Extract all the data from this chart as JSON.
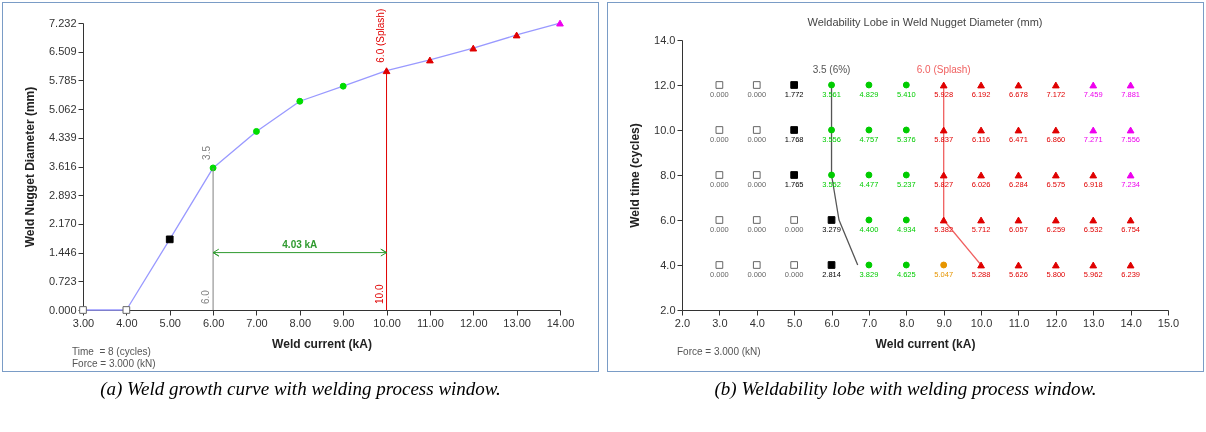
{
  "chart_data": [
    {
      "type": "line",
      "xlabel": "Weld current (kA)",
      "ylabel": "Weld Nugget Diameter (mm)",
      "xlim": [
        3,
        14
      ],
      "xticks": [
        {
          "value": 3,
          "label": "3.00"
        },
        {
          "value": 4,
          "label": "4.00"
        },
        {
          "value": 5,
          "label": "5.00"
        },
        {
          "value": 6,
          "label": "6.00"
        },
        {
          "value": 7,
          "label": "7.00"
        },
        {
          "value": 8,
          "label": "8.00"
        },
        {
          "value": 9,
          "label": "9.00"
        },
        {
          "value": 10,
          "label": "10.00"
        },
        {
          "value": 11,
          "label": "11.00"
        },
        {
          "value": 12,
          "label": "12.00"
        },
        {
          "value": 13,
          "label": "13.00"
        },
        {
          "value": 14,
          "label": "14.00"
        }
      ],
      "ylim": [
        0,
        7.232
      ],
      "yticks": [
        {
          "value": 0,
          "label": "0.000"
        },
        0.723,
        1.446,
        {
          "value": 2.17,
          "label": "2.170"
        },
        2.893,
        3.616,
        4.339,
        5.062,
        5.785,
        6.509,
        7.232
      ],
      "series": [
        {
          "color": "#9999ff",
          "marker": "none",
          "x": [
            3,
            4,
            5,
            6,
            7,
            8,
            9,
            10,
            11,
            12,
            13,
            14
          ],
          "values": [
            0,
            0,
            1.78,
            3.58,
            4.5,
            5.26,
            5.64,
            6.03,
            6.3,
            6.6,
            6.93,
            7.23
          ]
        },
        {
          "type": "scatter",
          "color": "#ffffff",
          "marker": "square",
          "x": [
            3,
            4
          ],
          "values": [
            0,
            0
          ]
        },
        {
          "type": "scatter",
          "color": "#000000",
          "marker": "square",
          "x": [
            5
          ],
          "values": [
            1.78
          ]
        },
        {
          "type": "scatter",
          "color": "#00dd00",
          "marker": "circle",
          "x": [
            6,
            7,
            8,
            9
          ],
          "values": [
            3.58,
            4.5,
            5.26,
            5.64
          ]
        },
        {
          "type": "scatter",
          "color": "#e00000",
          "marker": "triangle",
          "x": [
            10,
            11,
            12,
            13
          ],
          "values": [
            6.03,
            6.3,
            6.6,
            6.93
          ]
        },
        {
          "type": "scatter",
          "color": "#ee00ee",
          "marker": "triangle",
          "x": [
            14
          ],
          "values": [
            7.23
          ]
        }
      ],
      "ref_lines": [
        {
          "axis": "x",
          "value": 6,
          "label": "6.0",
          "color": "#808080"
        },
        {
          "axis": "x",
          "value": 10,
          "label": "10.0",
          "color": "#e00000"
        }
      ],
      "annotations": [
        {
          "text": "3.5",
          "x": 6,
          "y": 3.58
        },
        {
          "text": "6.0 (Splash)",
          "x": 10,
          "y": 6.03
        },
        "4.03 kA",
        "Time  = 8 (cycles)",
        "Force = 3.000 (kN)",
        "(a) Weld growth curve with welding process window."
      ]
    },
    {
      "type": "scatter",
      "title": "Weldability Lobe in Weld Nugget Diameter (mm)",
      "xlabel": "Weld current (kA)",
      "ylabel": "Weld time  (cycles)",
      "xlim": [
        2,
        15
      ],
      "xticks": [
        {
          "value": 2,
          "label": "2.0"
        },
        {
          "value": 3,
          "label": "3.0"
        },
        {
          "value": 4,
          "label": "4.0"
        },
        {
          "value": 5,
          "label": "5.0"
        },
        {
          "value": 6,
          "label": "6.0"
        },
        {
          "value": 7,
          "label": "7.0"
        },
        {
          "value": 8,
          "label": "8.0"
        },
        {
          "value": 9,
          "label": "9.0"
        },
        {
          "value": 10,
          "label": "10.0"
        },
        {
          "value": 11,
          "label": "11.0"
        },
        {
          "value": 12,
          "label": "12.0"
        },
        {
          "value": 13,
          "label": "13.0"
        },
        {
          "value": 14,
          "label": "14.0"
        },
        {
          "value": 15,
          "label": "15.0"
        }
      ],
      "ylim": [
        2,
        14
      ],
      "yticks": [
        {
          "value": 2,
          "label": "2.0"
        },
        {
          "value": 4,
          "label": "4.0"
        },
        {
          "value": 6,
          "label": "6.0"
        },
        {
          "value": 8,
          "label": "8.0"
        },
        {
          "value": 10,
          "label": "10.0"
        },
        {
          "value": 12,
          "label": "12.0"
        },
        {
          "value": 14,
          "label": "14.0"
        }
      ],
      "series": [
        {
          "type": "line",
          "name": "3.5 (6%)",
          "color": "#555555",
          "marker": "none",
          "x": [
            6,
            6,
            6.2,
            6.7
          ],
          "values": [
            12,
            8,
            6,
            4
          ]
        },
        {
          "type": "line",
          "name": "6.0 (Splash)",
          "color": "#f06060",
          "marker": "none",
          "x": [
            9,
            9,
            9,
            9,
            10
          ],
          "values": [
            12,
            10,
            8,
            6,
            4
          ]
        },
        {
          "color": "#ffffff",
          "marker": "square",
          "x": [
            3,
            4,
            3,
            4,
            3,
            4,
            3,
            4,
            5,
            3,
            4,
            5
          ],
          "values": [
            12,
            12,
            10,
            10,
            8,
            8,
            6,
            6,
            6,
            4,
            4,
            4
          ]
        },
        {
          "color": "#000000",
          "marker": "square",
          "x": [
            5,
            5,
            5,
            6,
            6
          ],
          "values": [
            12,
            10,
            8,
            6,
            4
          ]
        },
        {
          "color": "#00cc00",
          "marker": "circle",
          "x": [
            6,
            7,
            8,
            6,
            7,
            8,
            6,
            7,
            8,
            7,
            8,
            7,
            8
          ],
          "values": [
            12,
            12,
            12,
            10,
            10,
            10,
            8,
            8,
            8,
            6,
            6,
            4,
            4
          ]
        },
        {
          "color": "#e69500",
          "marker": "circle",
          "x": [
            9
          ],
          "values": [
            4
          ]
        },
        {
          "color": "#e00000",
          "marker": "triangle",
          "x": [
            9,
            10,
            11,
            12,
            9,
            10,
            11,
            12,
            9,
            10,
            11,
            12,
            13,
            9,
            10,
            11,
            12,
            13,
            14,
            10,
            11,
            12,
            13,
            14
          ],
          "values": [
            12,
            12,
            12,
            12,
            10,
            10,
            10,
            10,
            8,
            8,
            8,
            8,
            8,
            6,
            6,
            6,
            6,
            6,
            6,
            4,
            4,
            4,
            4,
            4
          ]
        },
        {
          "color": "#ee00ee",
          "marker": "triangle",
          "x": [
            13,
            14,
            13,
            14,
            14
          ],
          "values": [
            12,
            12,
            10,
            10,
            8
          ]
        }
      ],
      "annotations": [
        {
          "text": "0.000",
          "x": 3,
          "y": 12
        },
        {
          "text": "0.000",
          "x": 4,
          "y": 12
        },
        {
          "text": "1.772",
          "x": 5,
          "y": 12
        },
        {
          "text": "3.561",
          "x": 6,
          "y": 12
        },
        {
          "text": "4.829",
          "x": 7,
          "y": 12
        },
        {
          "text": "5.410",
          "x": 8,
          "y": 12
        },
        {
          "text": "5.928",
          "x": 9,
          "y": 12
        },
        {
          "text": "6.192",
          "x": 10,
          "y": 12
        },
        {
          "text": "6.678",
          "x": 11,
          "y": 12
        },
        {
          "text": "7.172",
          "x": 12,
          "y": 12
        },
        {
          "text": "7.459",
          "x": 13,
          "y": 12
        },
        {
          "text": "7.881",
          "x": 14,
          "y": 12
        },
        {
          "text": "0.000",
          "x": 3,
          "y": 10
        },
        {
          "text": "0.000",
          "x": 4,
          "y": 10
        },
        {
          "text": "1.768",
          "x": 5,
          "y": 10
        },
        {
          "text": "3.556",
          "x": 6,
          "y": 10
        },
        {
          "text": "4.757",
          "x": 7,
          "y": 10
        },
        {
          "text": "5.376",
          "x": 8,
          "y": 10
        },
        {
          "text": "5.837",
          "x": 9,
          "y": 10
        },
        {
          "text": "6.116",
          "x": 10,
          "y": 10
        },
        {
          "text": "6.471",
          "x": 11,
          "y": 10
        },
        {
          "text": "6.860",
          "x": 12,
          "y": 10
        },
        {
          "text": "7.271",
          "x": 13,
          "y": 10
        },
        {
          "text": "7.556",
          "x": 14,
          "y": 10
        },
        {
          "text": "0.000",
          "x": 3,
          "y": 8
        },
        {
          "text": "0.000",
          "x": 4,
          "y": 8
        },
        {
          "text": "1.765",
          "x": 5,
          "y": 8
        },
        {
          "text": "3.552",
          "x": 6,
          "y": 8
        },
        {
          "text": "4.477",
          "x": 7,
          "y": 8
        },
        {
          "text": "5.237",
          "x": 8,
          "y": 8
        },
        {
          "text": "5.827",
          "x": 9,
          "y": 8
        },
        {
          "text": "6.026",
          "x": 10,
          "y": 8
        },
        {
          "text": "6.284",
          "x": 11,
          "y": 8
        },
        {
          "text": "6.575",
          "x": 12,
          "y": 8
        },
        {
          "text": "6.918",
          "x": 13,
          "y": 8
        },
        {
          "text": "7.234",
          "x": 14,
          "y": 8
        },
        {
          "text": "0.000",
          "x": 3,
          "y": 6
        },
        {
          "text": "0.000",
          "x": 4,
          "y": 6
        },
        {
          "text": "0.000",
          "x": 5,
          "y": 6
        },
        {
          "text": "3.279",
          "x": 6,
          "y": 6
        },
        {
          "text": "4.400",
          "x": 7,
          "y": 6
        },
        {
          "text": "4.934",
          "x": 8,
          "y": 6
        },
        {
          "text": "5.382",
          "x": 9,
          "y": 6
        },
        {
          "text": "5.712",
          "x": 10,
          "y": 6
        },
        {
          "text": "6.057",
          "x": 11,
          "y": 6
        },
        {
          "text": "6.259",
          "x": 12,
          "y": 6
        },
        {
          "text": "6.532",
          "x": 13,
          "y": 6
        },
        {
          "text": "6.754",
          "x": 14,
          "y": 6
        },
        {
          "text": "0.000",
          "x": 3,
          "y": 4
        },
        {
          "text": "0.000",
          "x": 4,
          "y": 4
        },
        {
          "text": "0.000",
          "x": 5,
          "y": 4
        },
        {
          "text": "2.814",
          "x": 6,
          "y": 4
        },
        {
          "text": "3.829",
          "x": 7,
          "y": 4
        },
        {
          "text": "4.625",
          "x": 8,
          "y": 4
        },
        {
          "text": "5.047",
          "x": 9,
          "y": 4
        },
        {
          "text": "5.288",
          "x": 10,
          "y": 4
        },
        {
          "text": "5.626",
          "x": 11,
          "y": 4
        },
        {
          "text": "5.800",
          "x": 12,
          "y": 4
        },
        {
          "text": "5.962",
          "x": 13,
          "y": 4
        },
        {
          "text": "6.239",
          "x": 14,
          "y": 4
        },
        "Force = 3.000 (kN)",
        "(b) Weldability lobe with welding process window."
      ]
    }
  ]
}
